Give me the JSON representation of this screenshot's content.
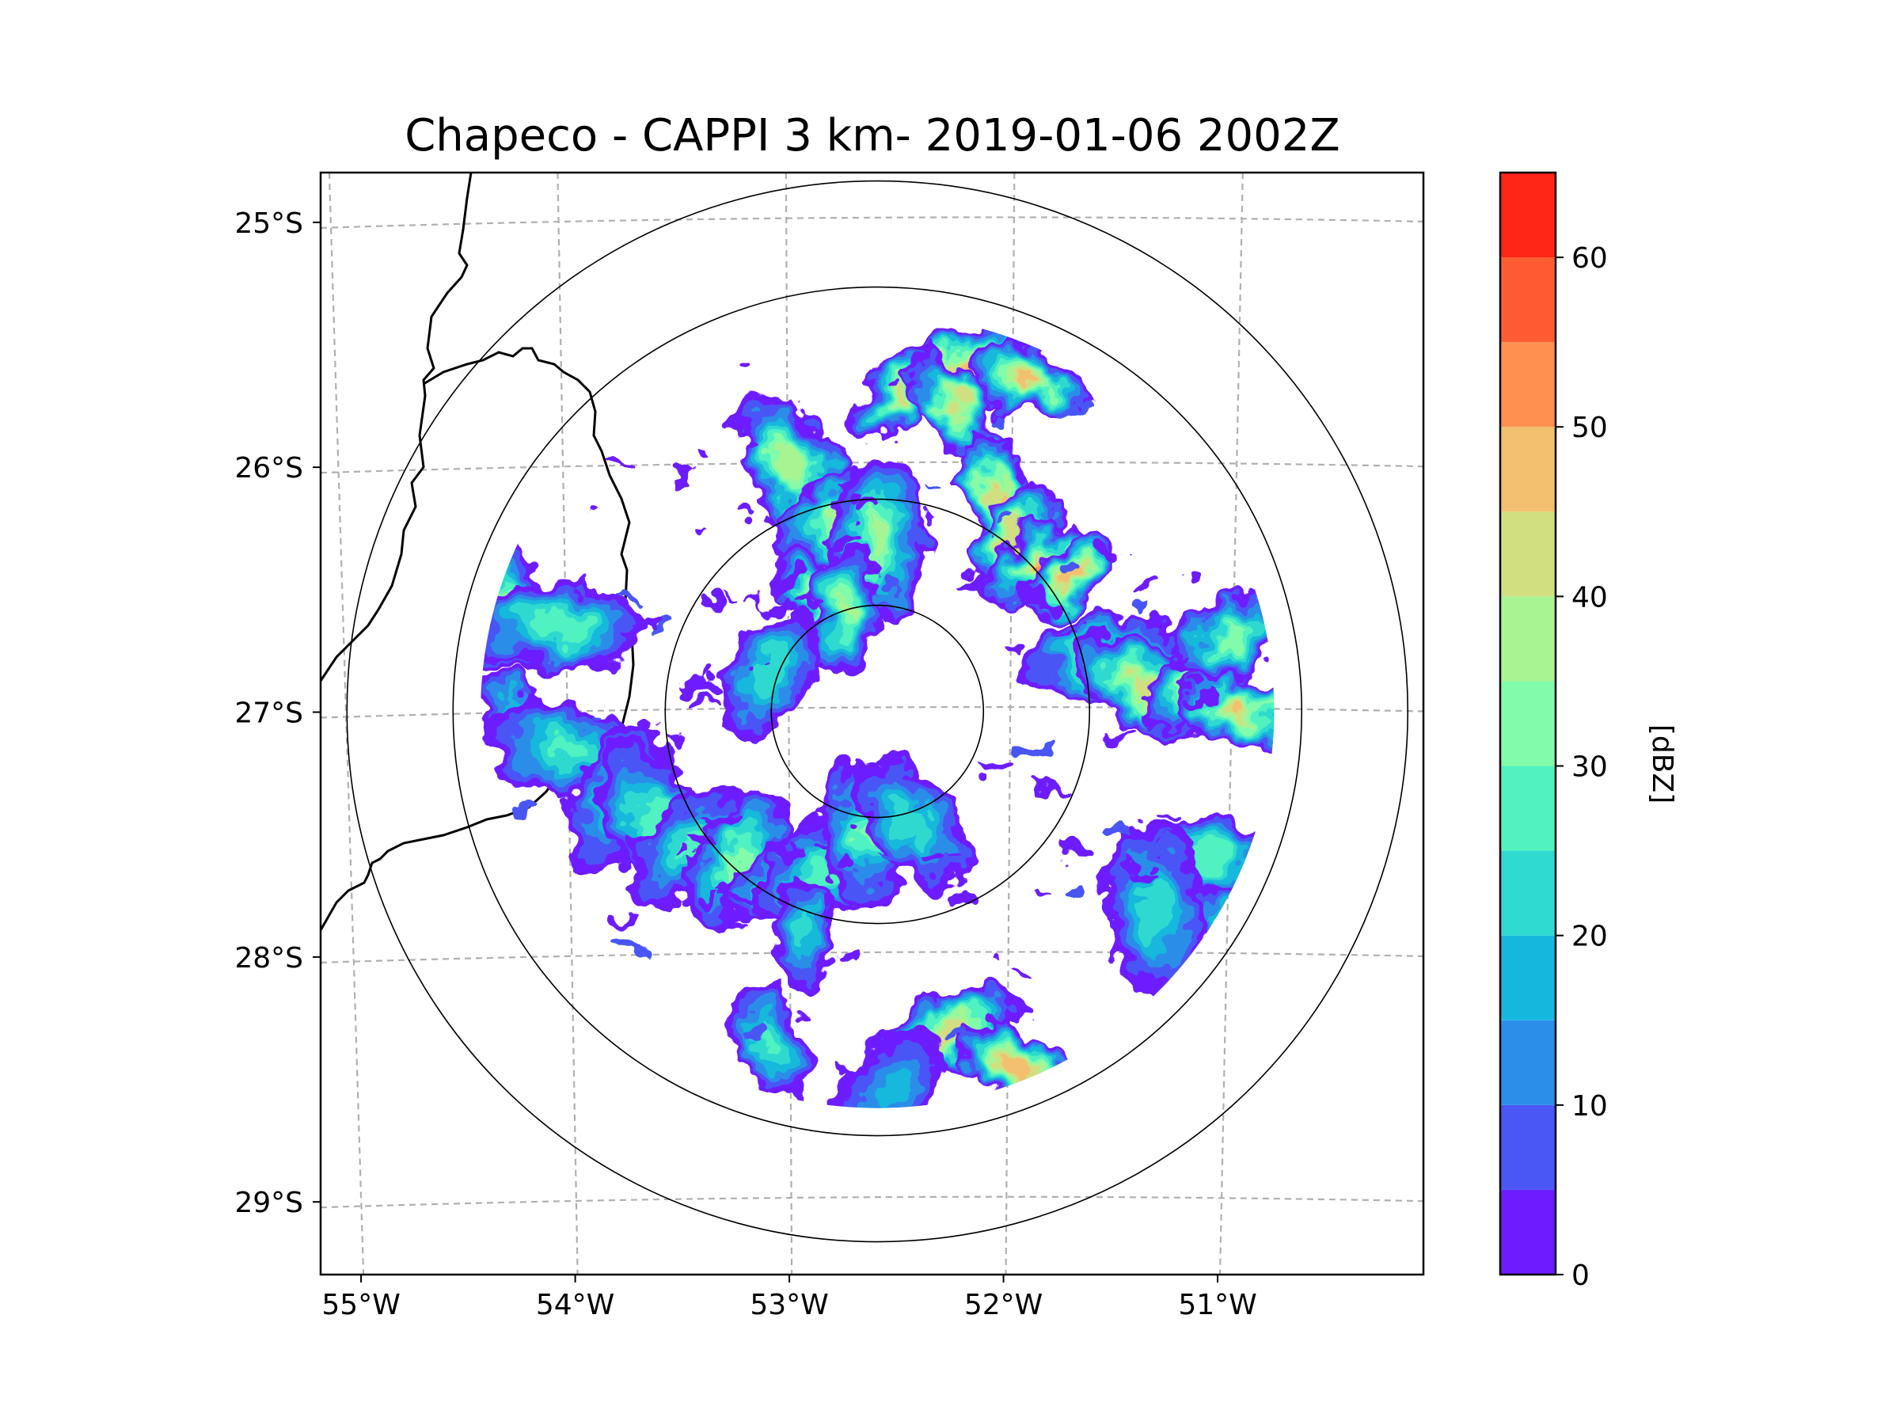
{
  "chart_data": {
    "type": "heatmap",
    "title": "Chapeco - CAPPI 3 km- 2019-01-06 2002Z",
    "xlabel": "",
    "ylabel": "",
    "x_ticks": [
      "55°W",
      "54°W",
      "53°W",
      "52°W",
      "51°W"
    ],
    "y_ticks": [
      "25°S",
      "26°S",
      "27°S",
      "28°S",
      "29°S"
    ],
    "lon_range": [
      -55.2,
      -50.05
    ],
    "lat_range": [
      -29.3,
      -24.8
    ],
    "grid": true,
    "radar_center": {
      "lon": -52.6,
      "lat": -27.0
    },
    "range_rings_km": [
      50,
      100,
      200,
      250
    ],
    "colorbar": {
      "label": "[dBZ]",
      "ticks": [
        "0",
        "10",
        "20",
        "30",
        "40",
        "50",
        "60"
      ],
      "levels": [
        0,
        5,
        10,
        15,
        20,
        25,
        30,
        35,
        40,
        45,
        50,
        55,
        60,
        65
      ],
      "colors": [
        "#6d1cff",
        "#4a57f5",
        "#2b8ee8",
        "#15b8dc",
        "#2fdad0",
        "#50f2c0",
        "#82fbaa",
        "#a8f493",
        "#d2df80",
        "#f2c06e",
        "#ff9050",
        "#ff5c34",
        "#ff2618"
      ]
    },
    "echo_cells": [
      {
        "lon": -52.2,
        "lat": -25.6,
        "dbz": 50
      },
      {
        "lon": -51.9,
        "lat": -25.65,
        "dbz": 48
      },
      {
        "lon": -52.5,
        "lat": -25.7,
        "dbz": 42
      },
      {
        "lon": -52.25,
        "lat": -25.75,
        "dbz": 45
      },
      {
        "lon": -53.0,
        "lat": -26.0,
        "dbz": 40
      },
      {
        "lon": -52.75,
        "lat": -26.2,
        "dbz": 45
      },
      {
        "lon": -52.6,
        "lat": -26.3,
        "dbz": 38
      },
      {
        "lon": -52.05,
        "lat": -26.1,
        "dbz": 48
      },
      {
        "lon": -51.95,
        "lat": -26.3,
        "dbz": 45
      },
      {
        "lon": -51.85,
        "lat": -26.4,
        "dbz": 52
      },
      {
        "lon": -51.7,
        "lat": -26.45,
        "dbz": 50
      },
      {
        "lon": -52.9,
        "lat": -26.55,
        "dbz": 35
      },
      {
        "lon": -52.75,
        "lat": -26.6,
        "dbz": 38
      },
      {
        "lon": -53.1,
        "lat": -26.85,
        "dbz": 25
      },
      {
        "lon": -54.35,
        "lat": -26.55,
        "dbz": 38
      },
      {
        "lon": -54.1,
        "lat": -26.65,
        "dbz": 30
      },
      {
        "lon": -54.3,
        "lat": -27.05,
        "dbz": 25
      },
      {
        "lon": -54.05,
        "lat": -27.15,
        "dbz": 28
      },
      {
        "lon": -53.8,
        "lat": -27.35,
        "dbz": 25
      },
      {
        "lon": -53.65,
        "lat": -27.45,
        "dbz": 30
      },
      {
        "lon": -53.45,
        "lat": -27.55,
        "dbz": 28
      },
      {
        "lon": -53.25,
        "lat": -27.6,
        "dbz": 35
      },
      {
        "lon": -53.05,
        "lat": -27.7,
        "dbz": 28
      },
      {
        "lon": -52.85,
        "lat": -27.65,
        "dbz": 30
      },
      {
        "lon": -52.65,
        "lat": -27.5,
        "dbz": 32
      },
      {
        "lon": -52.45,
        "lat": -27.45,
        "dbz": 25
      },
      {
        "lon": -52.95,
        "lat": -27.9,
        "dbz": 22
      },
      {
        "lon": -53.1,
        "lat": -28.35,
        "dbz": 28
      },
      {
        "lon": -52.25,
        "lat": -28.3,
        "dbz": 45
      },
      {
        "lon": -51.95,
        "lat": -28.45,
        "dbz": 50
      },
      {
        "lon": -52.55,
        "lat": -28.55,
        "dbz": 18
      },
      {
        "lon": -51.5,
        "lat": -26.8,
        "dbz": 40
      },
      {
        "lon": -51.35,
        "lat": -26.9,
        "dbz": 45
      },
      {
        "lon": -51.1,
        "lat": -26.9,
        "dbz": 42
      },
      {
        "lon": -50.9,
        "lat": -27.0,
        "dbz": 48
      },
      {
        "lon": -50.95,
        "lat": -26.7,
        "dbz": 35
      },
      {
        "lon": -51.05,
        "lat": -27.6,
        "dbz": 30
      },
      {
        "lon": -50.95,
        "lat": -27.9,
        "dbz": 28
      },
      {
        "lon": -51.3,
        "lat": -27.8,
        "dbz": 25
      }
    ]
  }
}
